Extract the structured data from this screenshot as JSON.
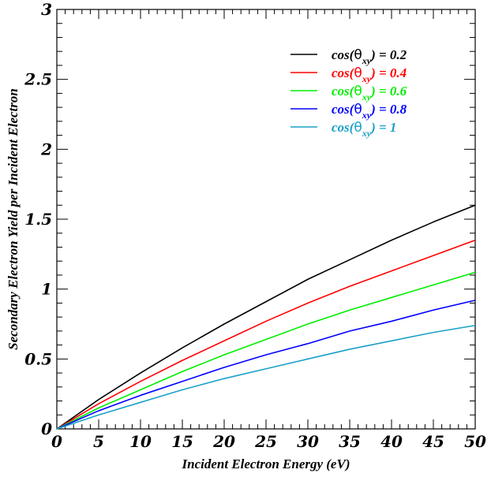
{
  "chart_data": {
    "type": "line",
    "title": "",
    "xlabel": "Incident Electron Energy (eV)",
    "ylabel": "Secondary Electron Yield per Incident Electron",
    "xlim": [
      0,
      50
    ],
    "ylim": [
      0,
      3
    ],
    "x_ticks": [
      0,
      5,
      10,
      15,
      20,
      25,
      30,
      35,
      40,
      45,
      50
    ],
    "y_ticks": [
      0,
      0.5,
      1,
      1.5,
      2,
      2.5,
      3
    ],
    "x_tick_labels": [
      "0",
      "5",
      "10",
      "15",
      "20",
      "25",
      "30",
      "35",
      "40",
      "45",
      "50"
    ],
    "y_tick_labels": [
      "0",
      "0.5",
      "1",
      "1.5",
      "2",
      "2.5",
      "3"
    ],
    "grid": false,
    "legend_position": "top-right",
    "x": [
      0,
      5,
      10,
      15,
      20,
      25,
      30,
      35,
      40,
      45,
      50
    ],
    "series": [
      {
        "name": "cos(θxy) = 0.2",
        "label_func": "cos(",
        "label_sym": "θ",
        "label_sub": "xy",
        "label_val": ") = 0.2",
        "color": "#000000",
        "values": [
          0,
          0.21,
          0.4,
          0.58,
          0.75,
          0.91,
          1.07,
          1.21,
          1.35,
          1.48,
          1.6
        ]
      },
      {
        "name": "cos(θxy) = 0.4",
        "label_func": "cos(",
        "label_sym": "θ",
        "label_sub": "xy",
        "label_val": ") = 0.4",
        "color": "#ff0000",
        "values": [
          0,
          0.18,
          0.34,
          0.49,
          0.63,
          0.77,
          0.9,
          1.02,
          1.13,
          1.24,
          1.35
        ]
      },
      {
        "name": "cos(θxy) = 0.6",
        "label_func": "cos(",
        "label_sym": "θ",
        "label_sub": "xy",
        "label_val": ") = 0.6",
        "color": "#00ee00",
        "values": [
          0,
          0.15,
          0.28,
          0.41,
          0.53,
          0.64,
          0.75,
          0.85,
          0.94,
          1.03,
          1.12
        ]
      },
      {
        "name": "cos(θxy) = 0.8",
        "label_func": "cos(",
        "label_sym": "θ",
        "label_sub": "xy",
        "label_val": ") = 0.8",
        "color": "#0000ff",
        "values": [
          0,
          0.13,
          0.24,
          0.34,
          0.44,
          0.53,
          0.61,
          0.7,
          0.77,
          0.85,
          0.92
        ]
      },
      {
        "name": "cos(θxy) = 1",
        "label_func": "cos(",
        "label_sym": "θ",
        "label_sub": "xy",
        "label_val": ") = 1",
        "color": "#1aa0c8",
        "values": [
          0,
          0.1,
          0.19,
          0.28,
          0.36,
          0.43,
          0.5,
          0.57,
          0.63,
          0.69,
          0.74
        ]
      }
    ]
  }
}
